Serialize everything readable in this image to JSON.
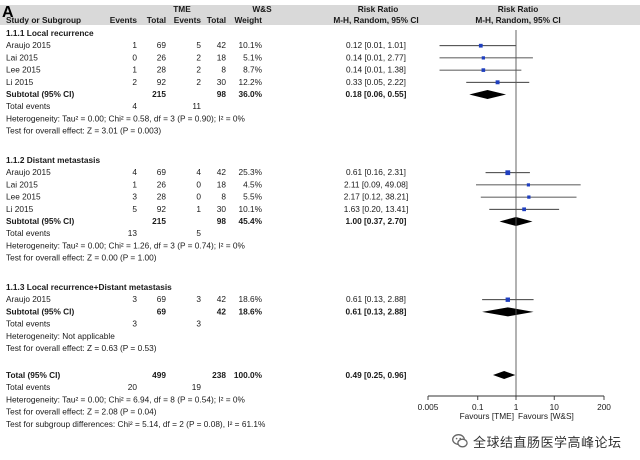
{
  "chart_data": {
    "type": "forest",
    "panel_label": "A",
    "headers": {
      "group1": "TME",
      "group2": "W&S",
      "study": "Study or Subgroup",
      "events1": "Events",
      "total1": "Total",
      "events2": "Events",
      "total2": "Total",
      "weight": "Weight",
      "rr_text": "Risk Ratio",
      "rr_text_sub": "M-H, Random, 95% CI",
      "rr_plot": "Risk Ratio",
      "rr_plot_sub": "M-H, Random, 95% CI"
    },
    "x_axis": {
      "scale": "log",
      "ticks": [
        0.005,
        0.1,
        1,
        10,
        200
      ],
      "tick_labels": [
        "0.005",
        "0.1",
        "1",
        "10",
        "200"
      ],
      "favours_left": "Favours [TME]",
      "favours_right": "Favours [W&S]"
    },
    "subgroups": [
      {
        "title": "1.1.1 Local recurrence",
        "studies": [
          {
            "name": "Araujo 2015",
            "e1": "1",
            "n1": "69",
            "e2": "5",
            "n2": "42",
            "weight": "10.1%",
            "ci_text": "0.12 [0.01, 1.01]",
            "rr": 0.12,
            "lo": 0.01,
            "hi": 1.01
          },
          {
            "name": "Lai 2015",
            "e1": "0",
            "n1": "26",
            "e2": "2",
            "n2": "18",
            "weight": "5.1%",
            "ci_text": "0.14 [0.01, 2.77]",
            "rr": 0.14,
            "lo": 0.01,
            "hi": 2.77
          },
          {
            "name": "Lee 2015",
            "e1": "1",
            "n1": "28",
            "e2": "2",
            "n2": "8",
            "weight": "8.7%",
            "ci_text": "0.14 [0.01, 1.38]",
            "rr": 0.14,
            "lo": 0.01,
            "hi": 1.38
          },
          {
            "name": "Li 2015",
            "e1": "2",
            "n1": "92",
            "e2": "2",
            "n2": "30",
            "weight": "12.2%",
            "ci_text": "0.33 [0.05, 2.22]",
            "rr": 0.33,
            "lo": 0.05,
            "hi": 2.22
          }
        ],
        "subtotal": {
          "label": "Subtotal (95% CI)",
          "n1": "215",
          "n2": "98",
          "weight": "36.0%",
          "ci_text": "0.18 [0.06, 0.55]",
          "rr": 0.18,
          "lo": 0.06,
          "hi": 0.55
        },
        "total_events": {
          "label": "Total events",
          "e1": "4",
          "e2": "11"
        },
        "heterogeneity": "Heterogeneity: Tau² = 0.00; Chi² = 0.58, df = 3 (P = 0.90); I² = 0%",
        "overall": "Test for overall effect: Z = 3.01 (P = 0.003)"
      },
      {
        "title": "1.1.2 Distant metastasis",
        "studies": [
          {
            "name": "Araujo 2015",
            "e1": "4",
            "n1": "69",
            "e2": "4",
            "n2": "42",
            "weight": "25.3%",
            "ci_text": "0.61 [0.16, 2.31]",
            "rr": 0.61,
            "lo": 0.16,
            "hi": 2.31
          },
          {
            "name": "Lai 2015",
            "e1": "1",
            "n1": "26",
            "e2": "0",
            "n2": "18",
            "weight": "4.5%",
            "ci_text": "2.11 [0.09, 49.08]",
            "rr": 2.11,
            "lo": 0.09,
            "hi": 49.08
          },
          {
            "name": "Lee 2015",
            "e1": "3",
            "n1": "28",
            "e2": "0",
            "n2": "8",
            "weight": "5.5%",
            "ci_text": "2.17 [0.12, 38.21]",
            "rr": 2.17,
            "lo": 0.12,
            "hi": 38.21
          },
          {
            "name": "Li 2015",
            "e1": "5",
            "n1": "92",
            "e2": "1",
            "n2": "30",
            "weight": "10.1%",
            "ci_text": "1.63 [0.20, 13.41]",
            "rr": 1.63,
            "lo": 0.2,
            "hi": 13.41
          }
        ],
        "subtotal": {
          "label": "Subtotal (95% CI)",
          "n1": "215",
          "n2": "98",
          "weight": "45.4%",
          "ci_text": "1.00 [0.37, 2.70]",
          "rr": 1.0,
          "lo": 0.37,
          "hi": 2.7
        },
        "total_events": {
          "label": "Total events",
          "e1": "13",
          "e2": "5"
        },
        "heterogeneity": "Heterogeneity: Tau² = 0.00; Chi² = 1.26, df = 3 (P = 0.74); I² = 0%",
        "overall": "Test for overall effect: Z = 0.00 (P = 1.00)"
      },
      {
        "title": "1.1.3 Local recurrence+Distant metastasis",
        "studies": [
          {
            "name": "Araujo 2015",
            "e1": "3",
            "n1": "69",
            "e2": "3",
            "n2": "42",
            "weight": "18.6%",
            "ci_text": "0.61 [0.13, 2.88]",
            "rr": 0.61,
            "lo": 0.13,
            "hi": 2.88
          }
        ],
        "subtotal": {
          "label": "Subtotal (95% CI)",
          "n1": "69",
          "n2": "42",
          "weight": "18.6%",
          "ci_text": "0.61 [0.13, 2.88]",
          "rr": 0.61,
          "lo": 0.13,
          "hi": 2.88
        },
        "total_events": {
          "label": "Total events",
          "e1": "3",
          "e2": "3"
        },
        "heterogeneity": "Heterogeneity: Not applicable",
        "overall": "Test for overall effect: Z = 0.63 (P = 0.53)"
      }
    ],
    "total": {
      "label": "Total (95% CI)",
      "n1": "499",
      "n2": "238",
      "weight": "100.0%",
      "ci_text": "0.49 [0.25, 0.96]",
      "rr": 0.49,
      "lo": 0.25,
      "hi": 0.96,
      "events": {
        "label": "Total events",
        "e1": "20",
        "e2": "19"
      },
      "heterogeneity": "Heterogeneity: Tau² = 0.00; Chi² = 6.94, df = 8 (P = 0.54); I² = 0%",
      "overall": "Test for overall effect: Z = 2.08 (P = 0.04)",
      "subgroup_diff": "Test for subgroup differences: Chi² = 5.14, df = 2 (P = 0.08), I² = 61.1%"
    },
    "colors": {
      "study_marker": "#1f3fbf",
      "summary_diamond": "#000000",
      "grid_line": "#555555",
      "header_band": "#d9d9d9"
    }
  },
  "watermark": {
    "text": "全球结直肠医学高峰论坛",
    "icon": "wechat-icon"
  }
}
